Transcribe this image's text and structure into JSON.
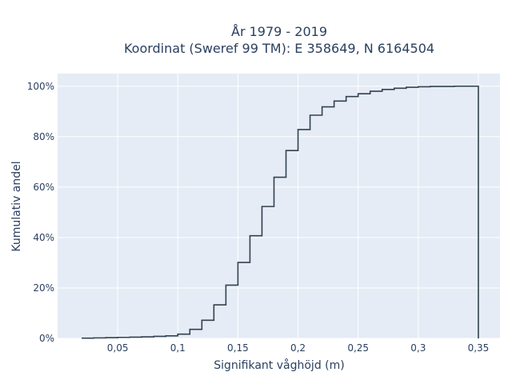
{
  "chart_data": {
    "type": "line",
    "title_line1": "År 1979 - 2019",
    "title_line2": "Koordinat (Sweref 99 TM): E 358649, N 6164504",
    "xlabel": "Signifikant våghöjd (m)",
    "ylabel": "Kumulativ andel",
    "xlim": [
      0.0,
      0.368
    ],
    "ylim": [
      0,
      1.05
    ],
    "x_ticks": [
      0.05,
      0.1,
      0.15,
      0.2,
      0.25,
      0.3,
      0.35
    ],
    "x_tick_labels": [
      "0,05",
      "0,1",
      "0,15",
      "0,2",
      "0,25",
      "0,3",
      "0,35"
    ],
    "y_ticks": [
      0,
      0.2,
      0.4,
      0.6,
      0.8,
      1.0
    ],
    "y_tick_labels": [
      "0%",
      "20%",
      "40%",
      "60%",
      "80%",
      "100%"
    ],
    "grid": true,
    "step_type": "cumulative histogram",
    "bin_edges": [
      0.02,
      0.03,
      0.04,
      0.05,
      0.06,
      0.07,
      0.08,
      0.09,
      0.1,
      0.11,
      0.12,
      0.13,
      0.14,
      0.15,
      0.16,
      0.17,
      0.18,
      0.19,
      0.2,
      0.21,
      0.22,
      0.23,
      0.24,
      0.25,
      0.26,
      0.27,
      0.28,
      0.29,
      0.3,
      0.31,
      0.32,
      0.33,
      0.34,
      0.35
    ],
    "cumulative_values": [
      0.001,
      0.002,
      0.003,
      0.004,
      0.005,
      0.006,
      0.008,
      0.01,
      0.017,
      0.036,
      0.072,
      0.133,
      0.211,
      0.301,
      0.407,
      0.523,
      0.639,
      0.745,
      0.828,
      0.885,
      0.918,
      0.941,
      0.959,
      0.97,
      0.98,
      0.987,
      0.992,
      0.996,
      0.998,
      0.999,
      0.999,
      1.0,
      1.0
    ],
    "colors": {
      "line": "#334150",
      "plot_bg": "#e5ecf6",
      "grid": "#ffffff",
      "text": "#2a3f5f"
    }
  }
}
